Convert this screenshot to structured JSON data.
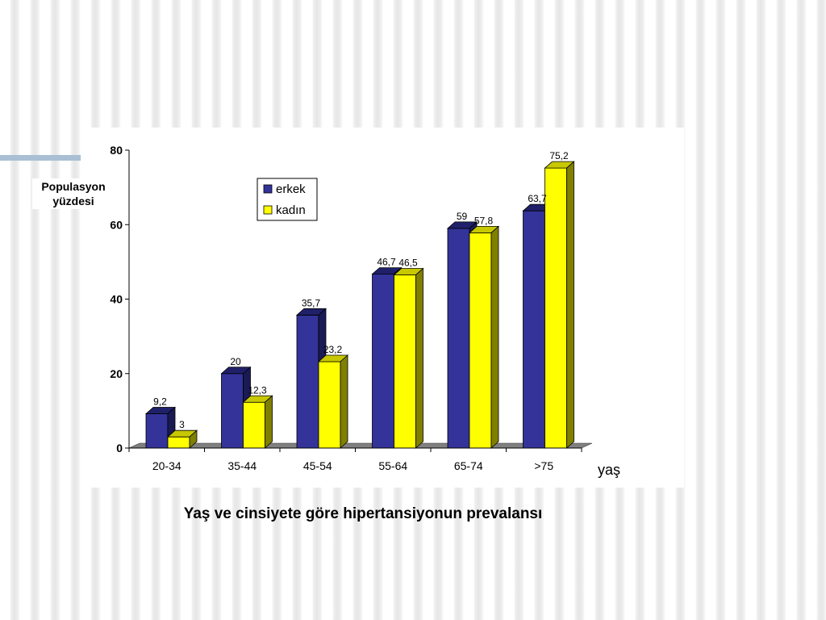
{
  "caption": "Yaş ve cinsiyete göre hipertansiyonun prevalansı",
  "colors": {
    "erkek_front": "#333399",
    "erkek_top": "#20206a",
    "erkek_side": "#1a1a55",
    "kadin_front": "#ffff00",
    "kadin_top": "#c8c800",
    "kadin_side": "#808000",
    "floor": "#808080"
  },
  "chart_data": {
    "type": "bar",
    "title": "",
    "xlabel": "yaş",
    "ylabel": "Populasyon yüzdesi",
    "categories": [
      "20-34",
      "35-44",
      "45-54",
      "55-64",
      "65-74",
      ">75"
    ],
    "series": [
      {
        "name": "erkek",
        "values": [
          9.2,
          20,
          35.7,
          46.7,
          59,
          63.7
        ],
        "labels": [
          "9,2",
          "20",
          "35,7",
          "46,7",
          "59",
          "63,7"
        ]
      },
      {
        "name": "kadın",
        "values": [
          3,
          12.3,
          23.2,
          46.5,
          57.8,
          75.2
        ],
        "labels": [
          "3",
          "12,3",
          "23,2",
          "46,5",
          "57,8",
          "75,2"
        ]
      }
    ],
    "ylim": [
      0,
      80
    ],
    "yticks": [
      0,
      20,
      40,
      60,
      80
    ],
    "legend": "top-center",
    "grid": false
  }
}
